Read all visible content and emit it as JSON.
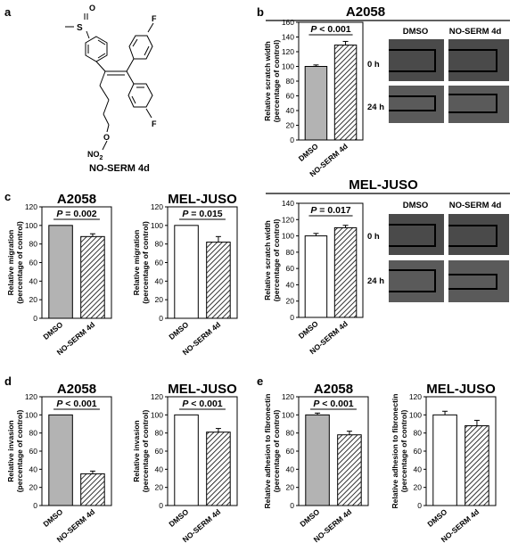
{
  "panel_labels": [
    "a",
    "b",
    "c",
    "d",
    "e"
  ],
  "compound": {
    "name": "NO-SERM 4d",
    "atoms": {
      "sulfonyl_o": "O",
      "sulfur": "S",
      "fluorine": "F",
      "ether_o": "O",
      "nitro": "NO",
      "nitro_sub": "2"
    }
  },
  "cell_lines": {
    "a2058": "A2058",
    "meljuso": "MEL-JUSO"
  },
  "scratch_images": {
    "col_dmso": "DMSO",
    "col_treated": "NO-SERM 4d",
    "row_0": "0 h",
    "row_24": "24 h",
    "fill_color": "#4a4a4a",
    "line_color": "#000000"
  },
  "colors": {
    "a2058_bar": "#b3b3b3",
    "meljuso_bar": "#ffffff",
    "hatch": "#000000"
  },
  "chart_data": [
    {
      "id": "b1",
      "type": "bar",
      "title": "A2058",
      "categories": [
        "DMSO",
        "NO-SERM 4d"
      ],
      "values": [
        100,
        129
      ],
      "errors": [
        2,
        5
      ],
      "ylabel": "Relative scratch width\n(percentage of control)",
      "ylim": [
        0,
        160
      ],
      "yticks": [
        0,
        20,
        40,
        60,
        80,
        100,
        120,
        140,
        160
      ],
      "pvalue": "P < 0.001",
      "series_color": "#b3b3b3"
    },
    {
      "id": "b2",
      "type": "bar",
      "title": "MEL-JUSO",
      "categories": [
        "DMSO",
        "NO-SERM 4d"
      ],
      "values": [
        100,
        110
      ],
      "errors": [
        3,
        3
      ],
      "ylabel": "Relative scratch width\n(percentage of control)",
      "ylim": [
        0,
        140
      ],
      "yticks": [
        0,
        20,
        40,
        60,
        80,
        100,
        120,
        140
      ],
      "pvalue": "P = 0.017",
      "series_color": "#ffffff"
    },
    {
      "id": "c1",
      "type": "bar",
      "title": "A2058",
      "categories": [
        "DMSO",
        "NO-SERM 4d"
      ],
      "values": [
        100,
        88
      ],
      "errors": [
        0,
        3
      ],
      "ylabel": "Relative migration\n(percentage of control)",
      "ylim": [
        0,
        120
      ],
      "yticks": [
        0,
        20,
        40,
        60,
        80,
        100,
        120
      ],
      "pvalue": "P = 0.002",
      "series_color": "#b3b3b3"
    },
    {
      "id": "c2",
      "type": "bar",
      "title": "MEL-JUSO",
      "categories": [
        "DMSO",
        "NO-SERM 4d"
      ],
      "values": [
        100,
        82
      ],
      "errors": [
        0,
        6
      ],
      "ylabel": "Relative migration\n(percentage of control)",
      "ylim": [
        0,
        120
      ],
      "yticks": [
        0,
        20,
        40,
        60,
        80,
        100,
        120
      ],
      "pvalue": "P = 0.015",
      "series_color": "#ffffff"
    },
    {
      "id": "d1",
      "type": "bar",
      "title": "A2058",
      "categories": [
        "DMSO",
        "NO-SERM 4d"
      ],
      "values": [
        100,
        35
      ],
      "errors": [
        0,
        3
      ],
      "ylabel": "Relative invasion\n(percentage of control)",
      "ylim": [
        0,
        120
      ],
      "yticks": [
        0,
        20,
        40,
        60,
        80,
        100,
        120
      ],
      "pvalue": "P < 0.001",
      "series_color": "#b3b3b3"
    },
    {
      "id": "d2",
      "type": "bar",
      "title": "MEL-JUSO",
      "categories": [
        "DMSO",
        "NO-SERM 4d"
      ],
      "values": [
        100,
        81
      ],
      "errors": [
        0,
        4
      ],
      "ylabel": "Relative invasion\n(percentage of control)",
      "ylim": [
        0,
        120
      ],
      "yticks": [
        0,
        20,
        40,
        60,
        80,
        100,
        120
      ],
      "pvalue": "P < 0.001",
      "series_color": "#ffffff"
    },
    {
      "id": "e1",
      "type": "bar",
      "title": "A2058",
      "categories": [
        "DMSO",
        "NO-SERM 4d"
      ],
      "values": [
        100,
        78
      ],
      "errors": [
        2,
        4
      ],
      "ylabel": "Relative adhesion to fibronectin\n(percentage of control)",
      "ylim": [
        0,
        120
      ],
      "yticks": [
        0,
        20,
        40,
        60,
        80,
        100,
        120
      ],
      "pvalue": "P < 0.001",
      "series_color": "#b3b3b3"
    },
    {
      "id": "e2",
      "type": "bar",
      "title": "MEL-JUSO",
      "categories": [
        "DMSO",
        "NO-SERM 4d"
      ],
      "values": [
        100,
        88
      ],
      "errors": [
        4,
        6
      ],
      "ylabel": "Relative adhesion to fibronectin\n(percentage of control)",
      "ylim": [
        0,
        120
      ],
      "yticks": [
        0,
        20,
        40,
        60,
        80,
        100,
        120
      ],
      "pvalue": "",
      "series_color": "#ffffff"
    }
  ]
}
